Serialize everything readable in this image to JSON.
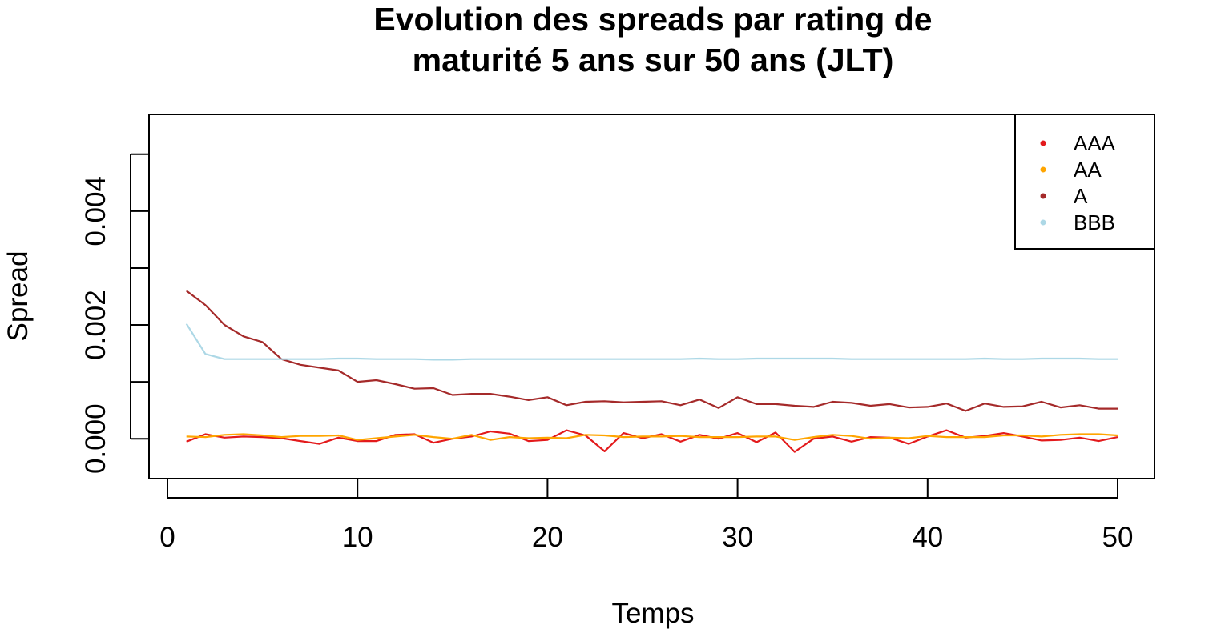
{
  "chart_data": {
    "type": "line",
    "title_lines": [
      "Evolution des spreads par rating de",
      "maturité 5 ans sur 50 ans (JLT)"
    ],
    "xlabel": "Temps",
    "ylabel": "Spread",
    "xlim": [
      0,
      50
    ],
    "ylim": [
      -0.0007,
      0.0057
    ],
    "x_ticks": [
      0,
      10,
      20,
      30,
      40,
      50
    ],
    "x_tick_labels": [
      "0",
      "10",
      "20",
      "30",
      "40",
      "50"
    ],
    "y_ticks": [
      0.0,
      0.001,
      0.002,
      0.003,
      0.004,
      0.005
    ],
    "y_tick_labels": [
      "0.000",
      "",
      "0.002",
      "",
      "0.004",
      ""
    ],
    "grid": false,
    "legend_position": "top-right",
    "x": [
      1,
      2,
      3,
      4,
      5,
      6,
      7,
      8,
      9,
      10,
      11,
      12,
      13,
      14,
      15,
      16,
      17,
      18,
      19,
      20,
      21,
      22,
      23,
      24,
      25,
      26,
      27,
      28,
      29,
      30,
      31,
      32,
      33,
      34,
      35,
      36,
      37,
      38,
      39,
      40,
      41,
      42,
      43,
      44,
      45,
      46,
      47,
      48,
      49,
      50
    ],
    "series": [
      {
        "name": "AAA",
        "color": "#e31a1c",
        "values": [
          -5e-05,
          8e-05,
          2e-05,
          4e-05,
          3e-05,
          1e-05,
          -4e-05,
          -9e-05,
          2e-05,
          -4e-05,
          -4e-05,
          7e-05,
          8e-05,
          -7e-05,
          0.0,
          4e-05,
          0.00013,
          9e-05,
          -4e-05,
          -2e-05,
          0.00015,
          6e-05,
          -0.00022,
          0.0001,
          1e-05,
          8e-05,
          -5e-05,
          7e-05,
          0.0,
          0.0001,
          -6e-05,
          0.00011,
          -0.00023,
          0.0,
          4e-05,
          -5e-05,
          3e-05,
          2e-05,
          -9e-05,
          4e-05,
          0.00015,
          2e-05,
          5e-05,
          0.0001,
          4e-05,
          -3e-05,
          -2e-05,
          2e-05,
          -4e-05,
          3e-05
        ]
      },
      {
        "name": "AA",
        "color": "#ffa500",
        "values": [
          4e-05,
          3e-05,
          7e-05,
          8e-05,
          6e-05,
          3e-05,
          5e-05,
          5e-05,
          6e-05,
          -2e-05,
          1e-05,
          4e-05,
          7e-05,
          3e-05,
          0.0,
          7e-05,
          -2e-05,
          3e-05,
          1e-05,
          2e-05,
          1e-05,
          7e-05,
          6e-05,
          3e-05,
          4e-05,
          4e-05,
          5e-05,
          3e-05,
          3e-05,
          3e-05,
          4e-05,
          4e-05,
          -2e-05,
          3e-05,
          7e-05,
          5e-05,
          0.0,
          2e-05,
          1e-05,
          5e-05,
          3e-05,
          3e-05,
          3e-05,
          6e-05,
          6e-05,
          4e-05,
          7e-05,
          8e-05,
          8e-05,
          6e-05
        ]
      },
      {
        "name": "A",
        "color": "#a52a2a",
        "values": [
          0.0026,
          0.00235,
          0.002,
          0.0018,
          0.0017,
          0.0014,
          0.0013,
          0.00125,
          0.0012,
          0.001,
          0.00103,
          0.00096,
          0.00088,
          0.00089,
          0.00077,
          0.00079,
          0.00079,
          0.00074,
          0.00068,
          0.00073,
          0.00059,
          0.00065,
          0.00066,
          0.00064,
          0.00065,
          0.00066,
          0.00059,
          0.00069,
          0.00054,
          0.00073,
          0.00061,
          0.00061,
          0.00058,
          0.00056,
          0.00065,
          0.00063,
          0.00058,
          0.00061,
          0.00055,
          0.00056,
          0.00062,
          0.00049,
          0.00062,
          0.00056,
          0.00057,
          0.00065,
          0.00055,
          0.00059,
          0.00053,
          0.00053
        ]
      },
      {
        "name": "BBB",
        "color": "#add8e6",
        "values": [
          0.00202,
          0.00149,
          0.0014,
          0.0014,
          0.0014,
          0.0014,
          0.0014,
          0.0014,
          0.00141,
          0.00141,
          0.0014,
          0.0014,
          0.0014,
          0.00139,
          0.00139,
          0.0014,
          0.0014,
          0.0014,
          0.0014,
          0.0014,
          0.0014,
          0.0014,
          0.0014,
          0.0014,
          0.0014,
          0.0014,
          0.0014,
          0.00141,
          0.0014,
          0.0014,
          0.00141,
          0.00141,
          0.00141,
          0.00141,
          0.00141,
          0.0014,
          0.0014,
          0.0014,
          0.0014,
          0.0014,
          0.0014,
          0.0014,
          0.00141,
          0.0014,
          0.0014,
          0.00141,
          0.00141,
          0.00141,
          0.0014,
          0.0014
        ]
      }
    ]
  }
}
